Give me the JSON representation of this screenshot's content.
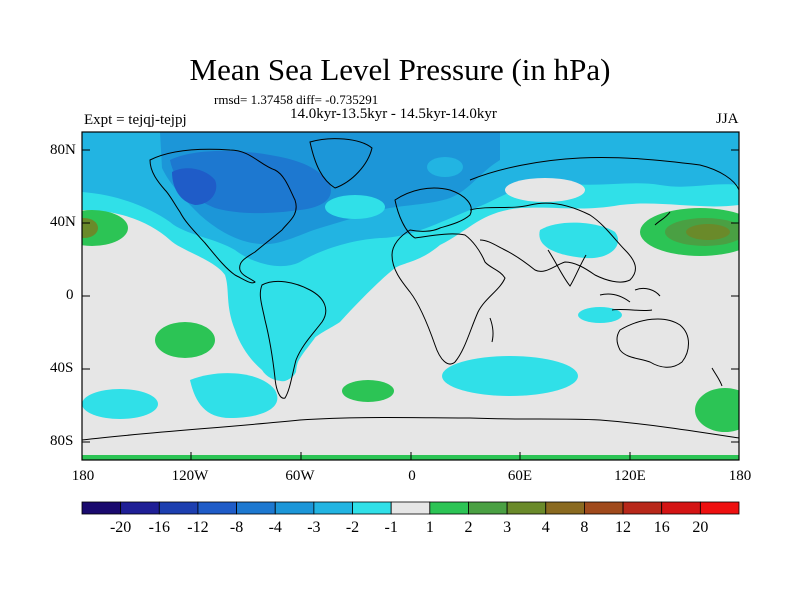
{
  "title": "Mean Sea Level Pressure (in hPa)",
  "stats": "rmsd= 1.37458 diff= -0.735291",
  "period": "14.0kyr-13.5kyr - 14.5kyr-14.0kyr",
  "experiment": "Expt = tejqj-tejpj",
  "season": "JJA",
  "lat_labels": [
    "80N",
    "40N",
    "0",
    "40S",
    "80S"
  ],
  "lon_labels": [
    "180",
    "120W",
    "60W",
    "0",
    "60E",
    "120E",
    "180"
  ],
  "colorbar": {
    "labels": [
      "-20",
      "-16",
      "-12",
      "-8",
      "-4",
      "-3",
      "-2",
      "-1",
      "1",
      "2",
      "3",
      "4",
      "8",
      "12",
      "16",
      "20"
    ],
    "colors": [
      "#1a0a6e",
      "#1f1f96",
      "#1d3fb0",
      "#1f5cc8",
      "#1d78d0",
      "#1c96d8",
      "#22b4e2",
      "#30e0e8",
      "#e6e6e6",
      "#2cc455",
      "#4aa043",
      "#6a8a2a",
      "#8a6a20",
      "#a04a1c",
      "#b8281a",
      "#d41414",
      "#ee1010"
    ]
  },
  "map_colors": {
    "neutral": "#e6e6e6",
    "cyan": "#30e0e8",
    "lightblue": "#22b4e2",
    "blue": "#1c96d8",
    "midblue": "#1d78d0",
    "darkblue": "#1f5cc8",
    "deepblue": "#1d3fb0",
    "green": "#2cc455",
    "darkgreen": "#4aa043",
    "olive": "#6a8a2a",
    "brown": "#8a6a20"
  }
}
